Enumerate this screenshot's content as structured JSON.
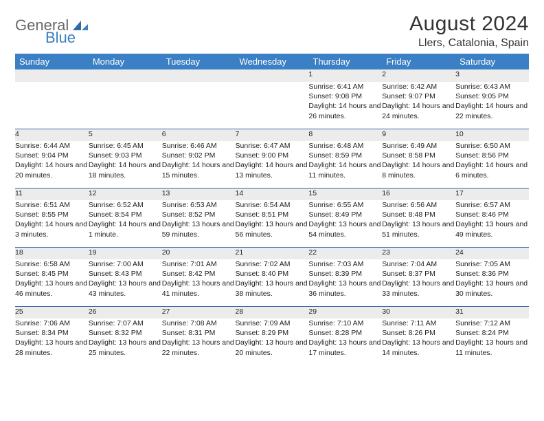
{
  "brand": {
    "general": "General",
    "blue": "Blue"
  },
  "header": {
    "title": "August 2024",
    "location": "Llers, Catalonia, Spain"
  },
  "style": {
    "header_bg": "#3b7fc4",
    "header_text": "#ffffff",
    "daynum_bg": "#ececec",
    "row_border": "#2f6aa8",
    "body_text": "#222222",
    "title_color": "#333333",
    "logo_gray": "#6a6a6a",
    "logo_blue": "#3b7fc4",
    "page_bg": "#ffffff",
    "title_fontsize": 30,
    "location_fontsize": 16,
    "header_fontsize": 13,
    "cell_fontsize": 10.5
  },
  "weekdays": [
    "Sunday",
    "Monday",
    "Tuesday",
    "Wednesday",
    "Thursday",
    "Friday",
    "Saturday"
  ],
  "weeks": [
    {
      "nums": [
        "",
        "",
        "",
        "",
        "1",
        "2",
        "3"
      ],
      "cells": [
        null,
        null,
        null,
        null,
        {
          "sunrise": "6:41 AM",
          "sunset": "9:08 PM",
          "daylight": "14 hours and 26 minutes."
        },
        {
          "sunrise": "6:42 AM",
          "sunset": "9:07 PM",
          "daylight": "14 hours and 24 minutes."
        },
        {
          "sunrise": "6:43 AM",
          "sunset": "9:05 PM",
          "daylight": "14 hours and 22 minutes."
        }
      ]
    },
    {
      "nums": [
        "4",
        "5",
        "6",
        "7",
        "8",
        "9",
        "10"
      ],
      "cells": [
        {
          "sunrise": "6:44 AM",
          "sunset": "9:04 PM",
          "daylight": "14 hours and 20 minutes."
        },
        {
          "sunrise": "6:45 AM",
          "sunset": "9:03 PM",
          "daylight": "14 hours and 18 minutes."
        },
        {
          "sunrise": "6:46 AM",
          "sunset": "9:02 PM",
          "daylight": "14 hours and 15 minutes."
        },
        {
          "sunrise": "6:47 AM",
          "sunset": "9:00 PM",
          "daylight": "14 hours and 13 minutes."
        },
        {
          "sunrise": "6:48 AM",
          "sunset": "8:59 PM",
          "daylight": "14 hours and 11 minutes."
        },
        {
          "sunrise": "6:49 AM",
          "sunset": "8:58 PM",
          "daylight": "14 hours and 8 minutes."
        },
        {
          "sunrise": "6:50 AM",
          "sunset": "8:56 PM",
          "daylight": "14 hours and 6 minutes."
        }
      ]
    },
    {
      "nums": [
        "11",
        "12",
        "13",
        "14",
        "15",
        "16",
        "17"
      ],
      "cells": [
        {
          "sunrise": "6:51 AM",
          "sunset": "8:55 PM",
          "daylight": "14 hours and 3 minutes."
        },
        {
          "sunrise": "6:52 AM",
          "sunset": "8:54 PM",
          "daylight": "14 hours and 1 minute."
        },
        {
          "sunrise": "6:53 AM",
          "sunset": "8:52 PM",
          "daylight": "13 hours and 59 minutes."
        },
        {
          "sunrise": "6:54 AM",
          "sunset": "8:51 PM",
          "daylight": "13 hours and 56 minutes."
        },
        {
          "sunrise": "6:55 AM",
          "sunset": "8:49 PM",
          "daylight": "13 hours and 54 minutes."
        },
        {
          "sunrise": "6:56 AM",
          "sunset": "8:48 PM",
          "daylight": "13 hours and 51 minutes."
        },
        {
          "sunrise": "6:57 AM",
          "sunset": "8:46 PM",
          "daylight": "13 hours and 49 minutes."
        }
      ]
    },
    {
      "nums": [
        "18",
        "19",
        "20",
        "21",
        "22",
        "23",
        "24"
      ],
      "cells": [
        {
          "sunrise": "6:58 AM",
          "sunset": "8:45 PM",
          "daylight": "13 hours and 46 minutes."
        },
        {
          "sunrise": "7:00 AM",
          "sunset": "8:43 PM",
          "daylight": "13 hours and 43 minutes."
        },
        {
          "sunrise": "7:01 AM",
          "sunset": "8:42 PM",
          "daylight": "13 hours and 41 minutes."
        },
        {
          "sunrise": "7:02 AM",
          "sunset": "8:40 PM",
          "daylight": "13 hours and 38 minutes."
        },
        {
          "sunrise": "7:03 AM",
          "sunset": "8:39 PM",
          "daylight": "13 hours and 36 minutes."
        },
        {
          "sunrise": "7:04 AM",
          "sunset": "8:37 PM",
          "daylight": "13 hours and 33 minutes."
        },
        {
          "sunrise": "7:05 AM",
          "sunset": "8:36 PM",
          "daylight": "13 hours and 30 minutes."
        }
      ]
    },
    {
      "nums": [
        "25",
        "26",
        "27",
        "28",
        "29",
        "30",
        "31"
      ],
      "cells": [
        {
          "sunrise": "7:06 AM",
          "sunset": "8:34 PM",
          "daylight": "13 hours and 28 minutes."
        },
        {
          "sunrise": "7:07 AM",
          "sunset": "8:32 PM",
          "daylight": "13 hours and 25 minutes."
        },
        {
          "sunrise": "7:08 AM",
          "sunset": "8:31 PM",
          "daylight": "13 hours and 22 minutes."
        },
        {
          "sunrise": "7:09 AM",
          "sunset": "8:29 PM",
          "daylight": "13 hours and 20 minutes."
        },
        {
          "sunrise": "7:10 AM",
          "sunset": "8:28 PM",
          "daylight": "13 hours and 17 minutes."
        },
        {
          "sunrise": "7:11 AM",
          "sunset": "8:26 PM",
          "daylight": "13 hours and 14 minutes."
        },
        {
          "sunrise": "7:12 AM",
          "sunset": "8:24 PM",
          "daylight": "13 hours and 11 minutes."
        }
      ]
    }
  ],
  "labels": {
    "sunrise": "Sunrise:",
    "sunset": "Sunset:",
    "daylight": "Daylight:"
  }
}
